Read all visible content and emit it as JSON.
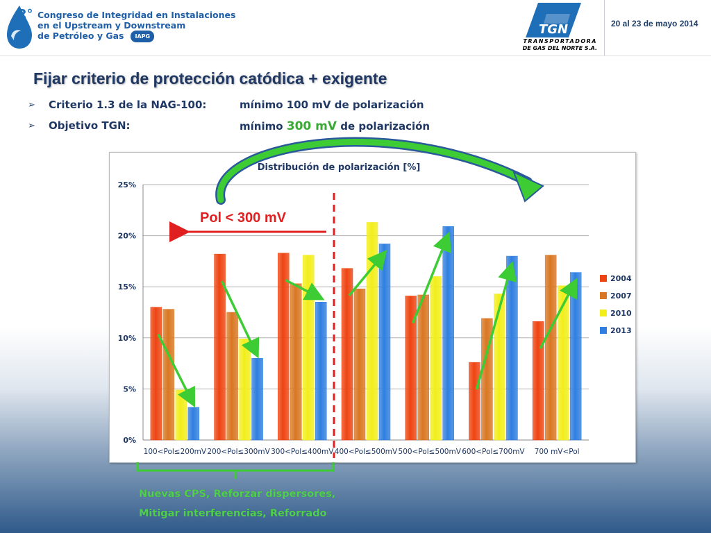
{
  "header": {
    "logo_number": "2°",
    "conference_lines": [
      "Congreso de Integridad en Instalaciones",
      "en el Upstream y Downstream",
      "de Petróleo y Gas"
    ],
    "iapg_badge": "IAPG",
    "company_logo": "TGN",
    "company_line1": "TRANSPORTADORA",
    "company_line2": "DE GAS DEL NORTE S.A.",
    "date": "20 al 23 de mayo 2014"
  },
  "slide": {
    "title": "Fijar criterio de protección catódica + exigente",
    "bullets": [
      {
        "label": "Criterio 1.3 de la NAG-100:",
        "value_pre": "mínimo 100 mV de polarización",
        "value_hl": "",
        "value_post": ""
      },
      {
        "label": "Objetivo TGN:",
        "value_pre": "mínimo ",
        "value_hl": "300 mV",
        "value_post": " de polarización"
      }
    ],
    "pol_annotation": "Pol < 300 mV",
    "bracket_lines": [
      "Nuevas CPS, Reforzar dispersores,",
      "Mitigar interferencias, Reforrado"
    ]
  },
  "colors": {
    "2004": "#ee4411",
    "2007": "#d97722",
    "2010": "#f2ee1a",
    "2013": "#2f7fe0",
    "arrow_green": "#3dcc33",
    "annotation_red": "#e02020",
    "title_blue": "#1f3864"
  },
  "chart_data": {
    "type": "bar",
    "title": "Distribución de polarización [%]",
    "categories": [
      "100<Pol≤200mV",
      "200<Pol≤300mV",
      "300<Pol≤400mV",
      "400<Pol≤500mV",
      "500<Pol≤500mV",
      "600<Pol≤700mV",
      "700 mV<Pol"
    ],
    "series": [
      {
        "name": "2004",
        "values": [
          13.0,
          18.2,
          18.3,
          16.8,
          14.1,
          7.6,
          11.6
        ]
      },
      {
        "name": "2007",
        "values": [
          12.8,
          12.5,
          15.3,
          14.8,
          14.2,
          11.9,
          18.1
        ]
      },
      {
        "name": "2010",
        "values": [
          4.9,
          9.9,
          18.1,
          21.3,
          16.0,
          14.3,
          15.1
        ]
      },
      {
        "name": "2013",
        "values": [
          3.2,
          8.0,
          13.5,
          19.2,
          20.9,
          18.0,
          16.4
        ]
      }
    ],
    "yticks": [
      "0%",
      "5%",
      "10%",
      "15%",
      "20%",
      "25%"
    ],
    "ylim": [
      0,
      25
    ],
    "legend_position": "right",
    "grid": true
  }
}
